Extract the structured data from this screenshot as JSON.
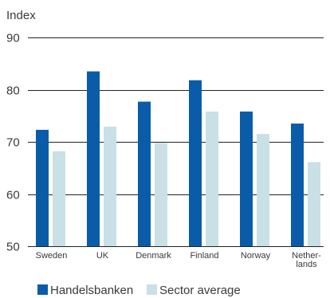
{
  "chart_data": {
    "type": "bar",
    "ylabel": "Index",
    "ylim": [
      50,
      90
    ],
    "yticks": [
      50,
      60,
      70,
      80,
      90
    ],
    "grid": true,
    "legend_position": "bottom-left",
    "categories": [
      {
        "label": "Sweden",
        "lines": [
          "Sweden"
        ]
      },
      {
        "label": "UK",
        "lines": [
          "UK"
        ]
      },
      {
        "label": "Denmark",
        "lines": [
          "Denmark"
        ]
      },
      {
        "label": "Finland",
        "lines": [
          "Finland"
        ]
      },
      {
        "label": "Norway",
        "lines": [
          "Norway"
        ]
      },
      {
        "label": "Netherlands",
        "lines": [
          "Nether-",
          "lands"
        ]
      }
    ],
    "series": [
      {
        "name": "Handelsbanken",
        "color": "#0a5ca8",
        "values": [
          72.3,
          83.5,
          77.7,
          81.8,
          75.8,
          73.5
        ]
      },
      {
        "name": "Sector average",
        "color": "#c8e0e6",
        "values": [
          68.2,
          72.9,
          69.8,
          75.8,
          71.5,
          66.1
        ]
      }
    ]
  }
}
